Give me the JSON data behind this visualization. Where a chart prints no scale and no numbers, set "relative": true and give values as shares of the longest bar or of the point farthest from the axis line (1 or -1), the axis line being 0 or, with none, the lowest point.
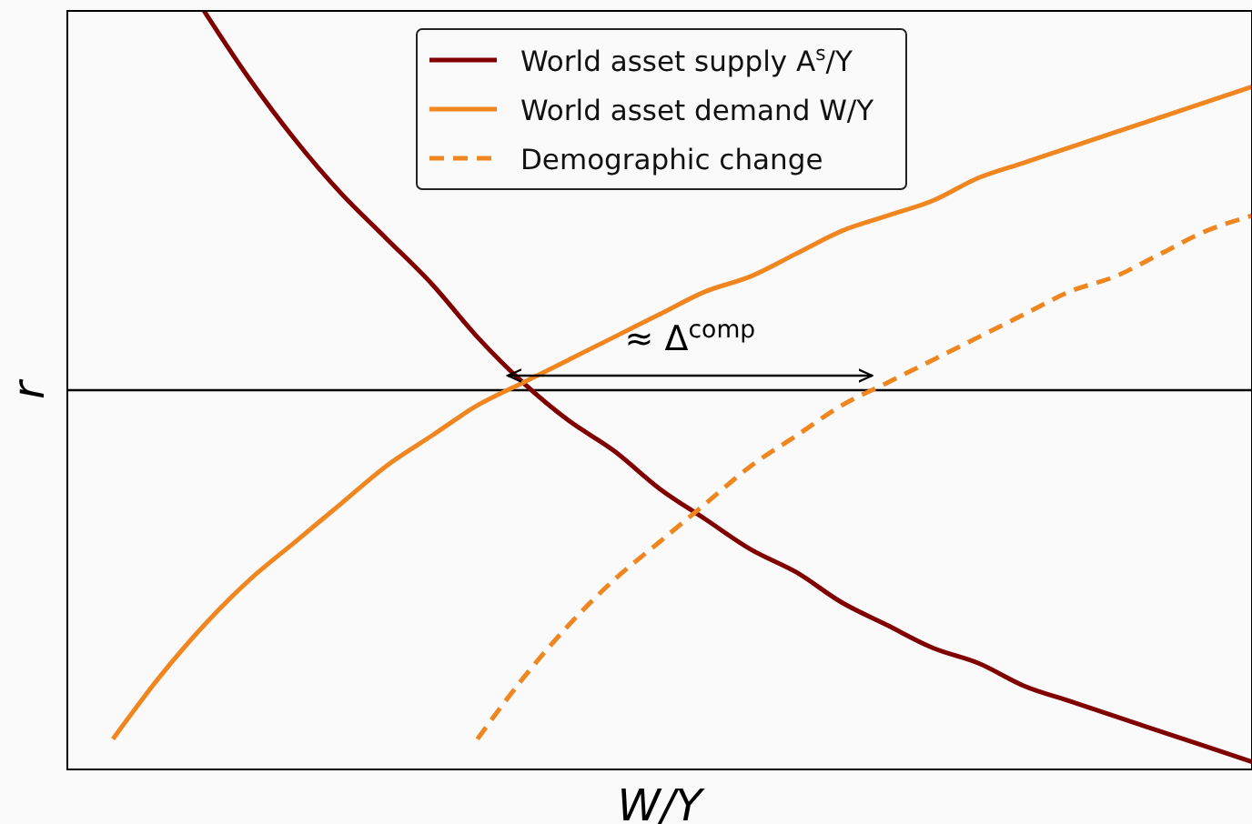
{
  "chart_data": {
    "type": "line",
    "relative": true,
    "xlabel": "W/Y",
    "ylabel": "r",
    "categories": [
      null,
      null,
      null,
      null,
      null,
      null,
      null,
      null,
      null,
      null,
      null,
      null,
      null,
      null,
      null,
      null,
      null,
      null,
      null,
      null,
      null,
      null,
      null,
      null,
      null,
      null,
      null
    ],
    "series": [
      {
        "name": "World asset supply A$^{s}$/Y",
        "color": "#800000",
        "values": [
          null,
          null,
          null,
          1,
          0.91,
          0.83,
          0.76,
          0.7,
          0.64,
          0.57,
          0.51,
          0.46,
          0.42,
          0.37,
          0.33,
          0.29,
          0.26,
          0.22,
          0.19,
          0.16,
          0.14,
          0.11,
          0.09,
          0.07,
          0.05,
          0.03,
          0.01
        ]
      },
      {
        "name": "World asset demand W/Y",
        "color": "#f0861f",
        "values": [
          null,
          0.04,
          0.12,
          0.19,
          0.25,
          0.3,
          0.35,
          0.4,
          0.44,
          0.48,
          0.51,
          0.54,
          0.57,
          0.6,
          0.63,
          0.65,
          0.68,
          0.71,
          0.73,
          0.75,
          0.78,
          0.8,
          0.82,
          0.84,
          0.86,
          0.88,
          0.9
        ]
      },
      {
        "name": "Demographic change",
        "color": "#f0861f",
        "line_style": "dashed",
        "values": [
          null,
          null,
          null,
          null,
          null,
          null,
          null,
          null,
          null,
          0.04,
          0.12,
          0.19,
          0.25,
          0.3,
          0.35,
          0.4,
          0.44,
          0.48,
          0.51,
          0.54,
          0.57,
          0.6,
          0.63,
          0.65,
          0.68,
          0.71,
          0.73
        ]
      }
    ],
    "ref_lines": [
      {
        "axis": "y",
        "value": 0.5,
        "color": "#000000"
      }
    ],
    "annotations": [
      "≈ Δ$^{comp}$"
    ],
    "legend": "top",
    "marker": "none"
  }
}
